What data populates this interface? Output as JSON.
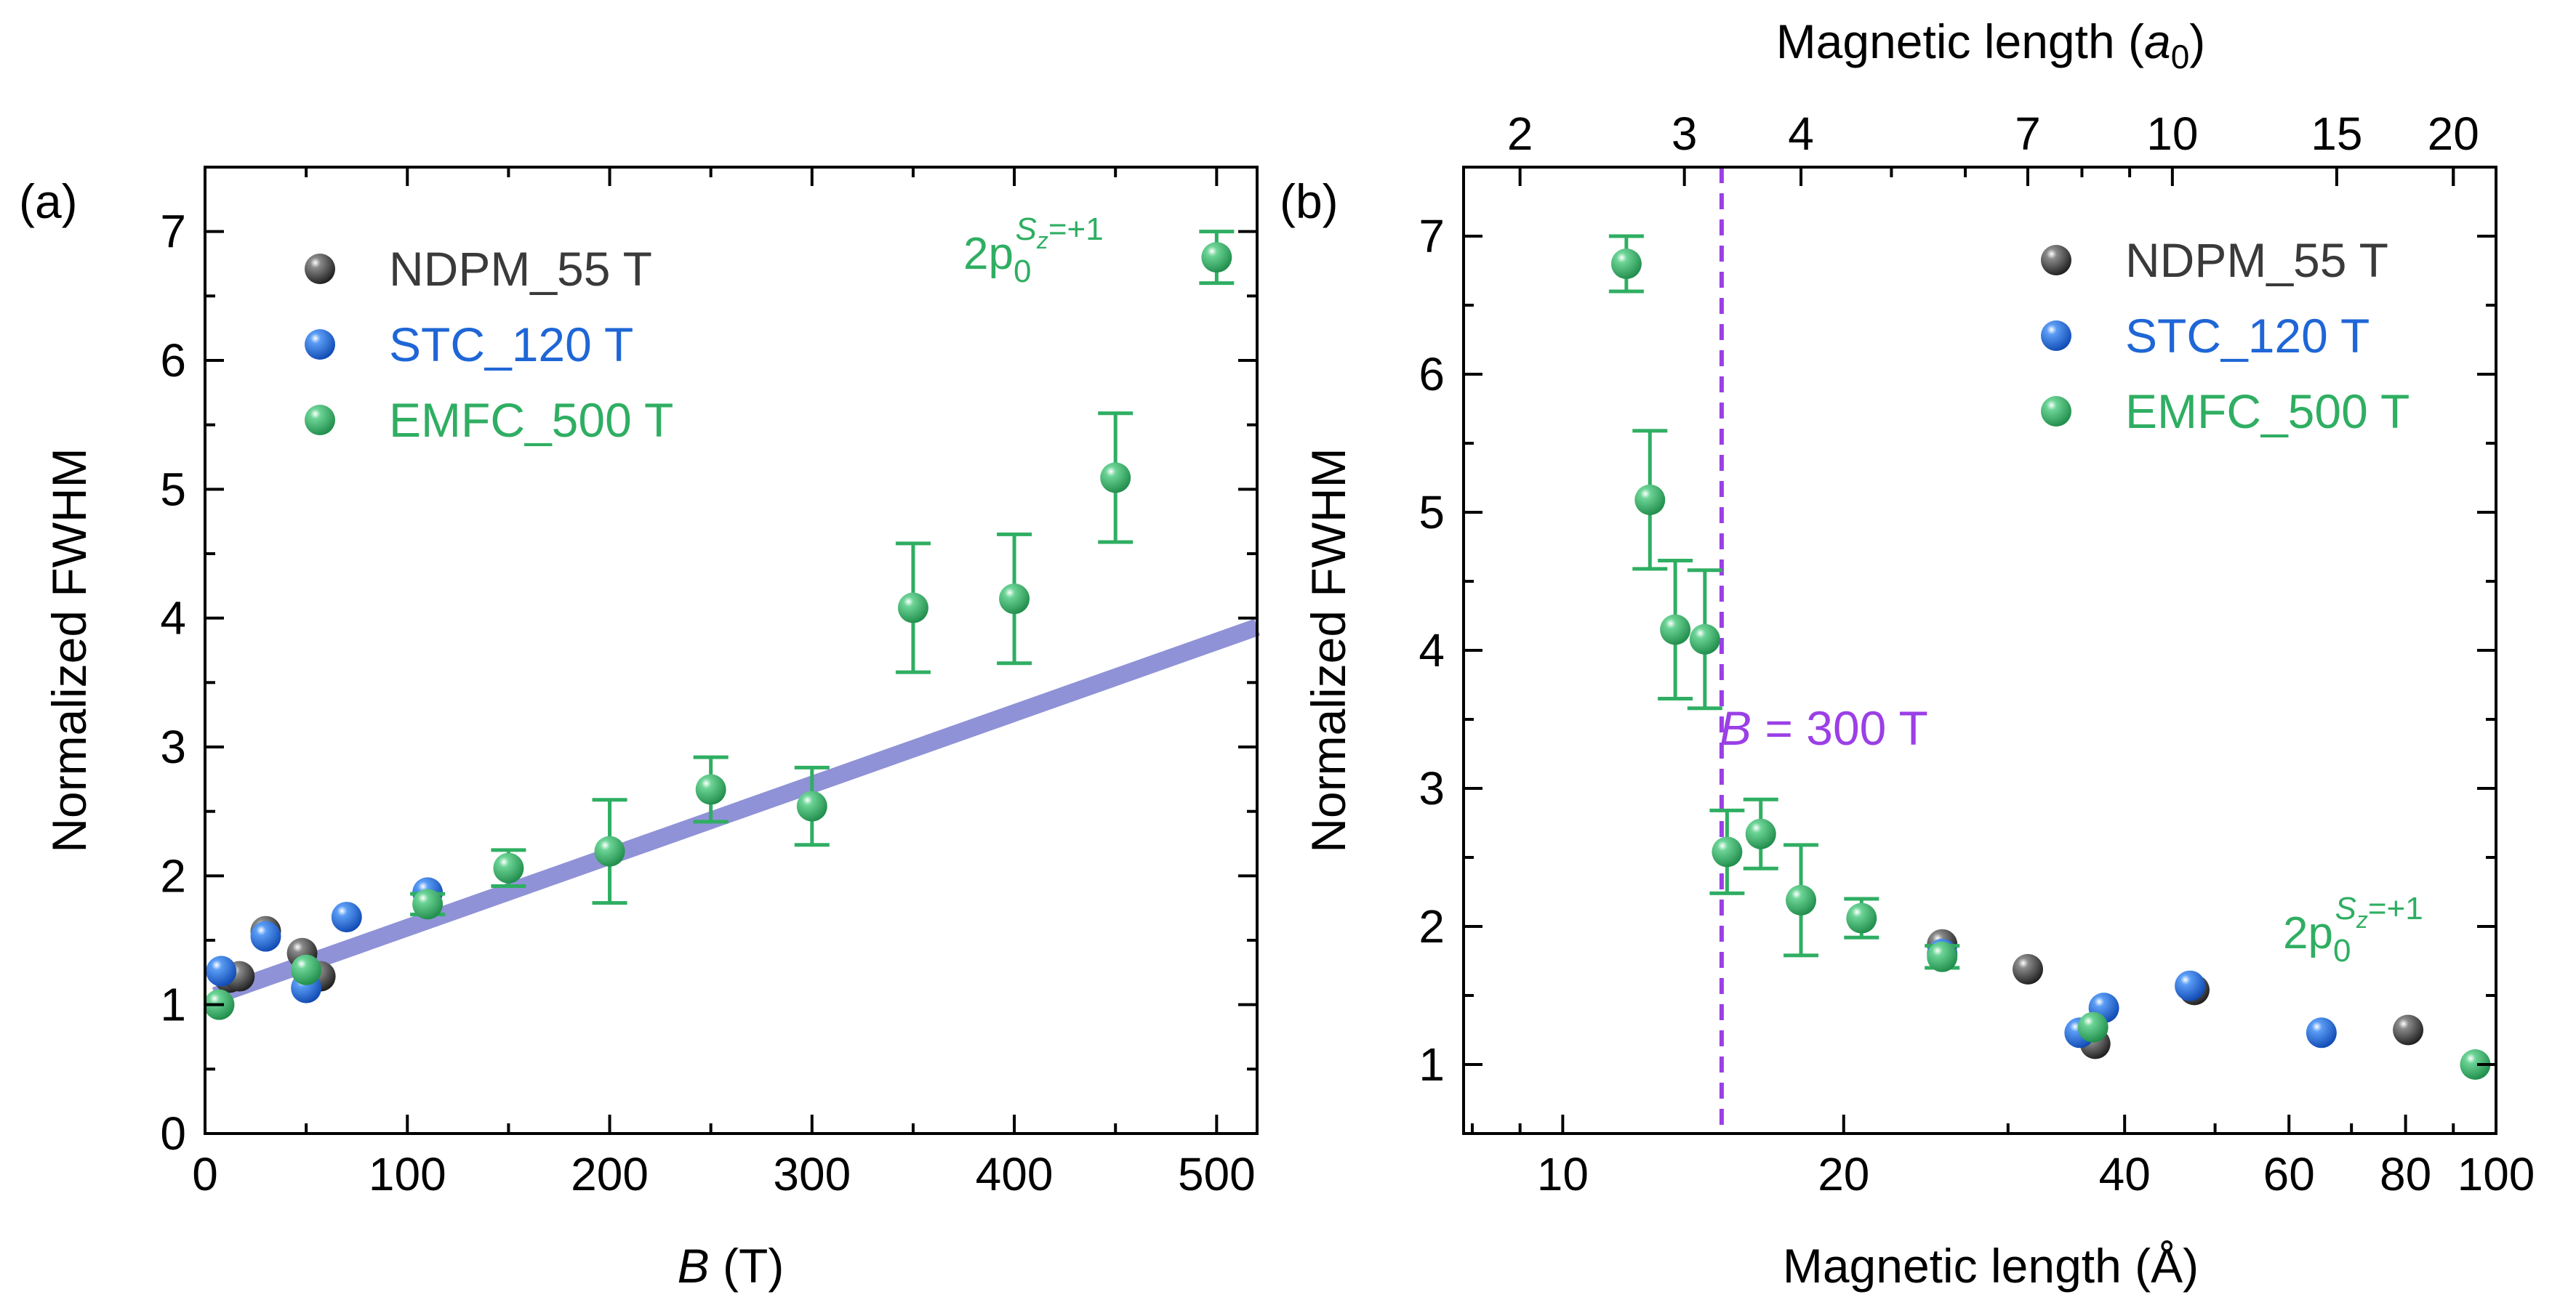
{
  "colors": {
    "ndpm": "#3a3a3a",
    "stc": "#1f66d6",
    "emfc": "#2fae62",
    "fit": "#8f92d6",
    "cutoff": "#9b3fe6",
    "axis": "#000000"
  },
  "chart_data": [
    {
      "type": "scatter",
      "panel_label": "(a)",
      "title": "",
      "xlabel_var": "B",
      "xlabel_unit": " (T)",
      "ylabel": "Normalized FWHM",
      "xlim": [
        0,
        520
      ],
      "ylim": [
        0,
        7.5
      ],
      "xticks": [
        0,
        100,
        200,
        300,
        400,
        500
      ],
      "yticks": [
        0,
        1,
        2,
        3,
        4,
        5,
        6,
        7
      ],
      "legend": {
        "position": "top-left",
        "entries": [
          "NDPM_55 T",
          "STC_120 T",
          "EMFC_500 T"
        ]
      },
      "annotation": {
        "base": "2p",
        "sub": "0",
        "sup_var": "S",
        "sup_sub": "z",
        "sup_rest": "=+1"
      },
      "series": [
        {
          "name": "NDPM_55 T",
          "color_key": "ndpm",
          "points": [
            [
              12,
              1.21
            ],
            [
              17,
              1.22
            ],
            [
              30,
              1.57
            ],
            [
              48,
              1.4
            ],
            [
              57,
              1.22
            ]
          ]
        },
        {
          "name": "STC_120 T",
          "color_key": "stc",
          "points": [
            [
              8,
              1.26
            ],
            [
              30,
              1.53
            ],
            [
              50,
              1.13
            ],
            [
              70,
              1.68
            ],
            [
              110,
              1.87
            ]
          ]
        },
        {
          "name": "EMFC_500 T",
          "color_key": "emfc",
          "points": [
            {
              "x": 7,
              "y": 1.0,
              "err": 0.0
            },
            {
              "x": 50,
              "y": 1.27,
              "err": 0.0
            },
            {
              "x": 110,
              "y": 1.78,
              "err": 0.08
            },
            {
              "x": 150,
              "y": 2.06,
              "err": 0.14
            },
            {
              "x": 200,
              "y": 2.19,
              "err": 0.4
            },
            {
              "x": 250,
              "y": 2.67,
              "err": 0.25
            },
            {
              "x": 300,
              "y": 2.54,
              "err": 0.3
            },
            {
              "x": 350,
              "y": 4.08,
              "err": 0.5
            },
            {
              "x": 400,
              "y": 4.15,
              "err": 0.5
            },
            {
              "x": 450,
              "y": 5.09,
              "err": 0.5
            },
            {
              "x": 500,
              "y": 6.8,
              "err": 0.2
            }
          ]
        }
      ],
      "fit_line": {
        "x": [
          5,
          520
        ],
        "y": [
          1.07,
          3.93
        ]
      }
    },
    {
      "type": "scatter",
      "panel_label": "(b)",
      "title": "",
      "xscale": "log",
      "xlabel": "Magnetic length (Å)",
      "top_xlabel_text": "Magnetic length (",
      "top_xlabel_var": "a",
      "top_xlabel_sub": "0",
      "top_xlabel_end": ")",
      "ylabel": "Normalized FWHM",
      "xlim": [
        7.83,
        100
      ],
      "ylim": [
        0.5,
        7.5
      ],
      "xticks": [
        10,
        20,
        40,
        60,
        80,
        100
      ],
      "xtick_labels": [
        "10",
        "20",
        "40",
        "60",
        "80",
        "100"
      ],
      "top_ticks": [
        2,
        3,
        4,
        7,
        10,
        15,
        20
      ],
      "top_tick_labels": [
        "2",
        "3",
        "4",
        "7",
        "10",
        "15",
        "20"
      ],
      "bohr_radius_angstrom": 4.5,
      "yticks": [
        1,
        2,
        3,
        4,
        5,
        6,
        7
      ],
      "cutoff": {
        "x": 14.8,
        "label_var": "B",
        "label_rest": " = 300 T"
      },
      "legend": {
        "position": "top-right",
        "entries": [
          "NDPM_55 T",
          "STC_120 T",
          "EMFC_500 T"
        ]
      },
      "annotation": {
        "base": "2p",
        "sub": "0",
        "sup_var": "S",
        "sup_sub": "z",
        "sup_rest": "=+1"
      },
      "series": [
        {
          "name": "NDPM_55 T",
          "color_key": "ndpm",
          "points": [
            [
              25.5,
              1.87
            ],
            [
              31.5,
              1.69
            ],
            [
              37.2,
              1.15
            ],
            [
              47.5,
              1.54
            ],
            [
              80.5,
              1.25
            ]
          ]
        },
        {
          "name": "STC_120 T",
          "color_key": "stc",
          "points": [
            [
              25.5,
              1.8
            ],
            [
              35.8,
              1.23
            ],
            [
              38.0,
              1.41
            ],
            [
              47.0,
              1.57
            ],
            [
              65.0,
              1.23
            ]
          ]
        },
        {
          "name": "EMFC_500 T",
          "color_key": "emfc",
          "points": [
            {
              "x": 11.7,
              "y": 6.8,
              "err": 0.2
            },
            {
              "x": 12.4,
              "y": 5.09,
              "err": 0.5
            },
            {
              "x": 13.2,
              "y": 4.15,
              "err": 0.5
            },
            {
              "x": 14.2,
              "y": 4.08,
              "err": 0.5
            },
            {
              "x": 15.0,
              "y": 2.54,
              "err": 0.3
            },
            {
              "x": 16.3,
              "y": 2.67,
              "err": 0.25
            },
            {
              "x": 18.0,
              "y": 2.19,
              "err": 0.4
            },
            {
              "x": 20.9,
              "y": 2.06,
              "err": 0.14
            },
            {
              "x": 25.5,
              "y": 1.78,
              "err": 0.08
            },
            {
              "x": 37.0,
              "y": 1.27,
              "err": 0.0
            },
            {
              "x": 95.0,
              "y": 1.0,
              "err": 0.0
            }
          ]
        }
      ]
    }
  ]
}
